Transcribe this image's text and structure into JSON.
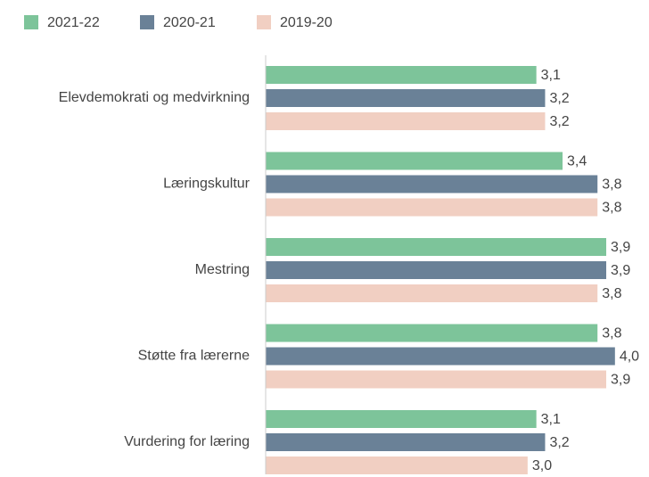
{
  "chart_data": {
    "type": "hbar",
    "categories": [
      "Elevdemokrati og medvirkning",
      "Læringskultur",
      "Mestring",
      "Støtte fra lærerne",
      "Vurdering for læring"
    ],
    "series": [
      {
        "name": "2021-22",
        "color": "#7dc49a",
        "values": [
          3.1,
          3.4,
          3.9,
          3.8,
          3.1
        ],
        "value_labels": [
          "3,1",
          "3,4",
          "3,9",
          "3,8",
          "3,1"
        ]
      },
      {
        "name": "2020-21",
        "color": "#6a8197",
        "values": [
          3.2,
          3.8,
          3.9,
          4.0,
          3.2
        ],
        "value_labels": [
          "3,2",
          "3,8",
          "3,9",
          "4,0",
          "3,2"
        ]
      },
      {
        "name": "2019-20",
        "color": "#f1cfc2",
        "values": [
          3.2,
          3.8,
          3.8,
          3.9,
          3.0
        ],
        "value_labels": [
          "3,2",
          "3,8",
          "3,8",
          "3,9",
          "3,0"
        ]
      }
    ],
    "xlim": [
      0,
      4.4
    ],
    "legend": "top-left"
  }
}
